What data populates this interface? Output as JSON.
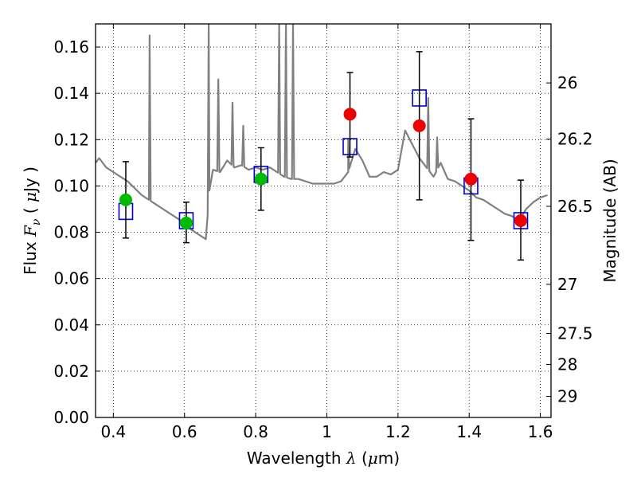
{
  "chart_data": {
    "type": "scatter",
    "xlabel": "Wavelength  λ (μm)",
    "ylabel": "Flux  F_ν  ( μJy )",
    "y2label": "Magnitude (AB)",
    "xlim": [
      0.35,
      1.63
    ],
    "ylim": [
      0.0,
      0.17
    ],
    "x_ticks": [
      0.4,
      0.6,
      0.8,
      1.0,
      1.2,
      1.4,
      1.6
    ],
    "x_tick_labels": [
      "0.4",
      "0.6",
      "0.8",
      "1",
      "1.2",
      "1.4",
      "1.6"
    ],
    "y_ticks": [
      0.0,
      0.02,
      0.04,
      0.06,
      0.08,
      0.1,
      0.12,
      0.14,
      0.16
    ],
    "y_tick_labels": [
      "0.00",
      "0.02",
      "0.04",
      "0.06",
      "0.08",
      "0.10",
      "0.12",
      "0.14",
      "0.16"
    ],
    "y2_ticks": [
      {
        "label": "26",
        "flux": 0.1445
      },
      {
        "label": "26.2",
        "flux": 0.1202
      },
      {
        "label": "26.5",
        "flux": 0.0912
      },
      {
        "label": "27",
        "flux": 0.0575
      },
      {
        "label": "27.5",
        "flux": 0.0363
      },
      {
        "label": "28",
        "flux": 0.0229
      },
      {
        "label": "29",
        "flux": 0.0091
      }
    ],
    "grid": true,
    "series": [
      {
        "style": "model-spectrum",
        "color": "#808080",
        "x": [
          0.35,
          0.36,
          0.38,
          0.4,
          0.42,
          0.44,
          0.46,
          0.48,
          0.5,
          0.52,
          0.54,
          0.56,
          0.58,
          0.6,
          0.62,
          0.64,
          0.66,
          0.67,
          0.68,
          0.7,
          0.72,
          0.74,
          0.76,
          0.78,
          0.8,
          0.82,
          0.84,
          0.86,
          0.88,
          0.9,
          0.92,
          0.94,
          0.96,
          0.98,
          1.0,
          1.02,
          1.04,
          1.06,
          1.08,
          1.1,
          1.12,
          1.14,
          1.16,
          1.18,
          1.2,
          1.22,
          1.24,
          1.26,
          1.28,
          1.3,
          1.32,
          1.34,
          1.36,
          1.38,
          1.4,
          1.42,
          1.44,
          1.46,
          1.48,
          1.5,
          1.52,
          1.54,
          1.56,
          1.58,
          1.6,
          1.62
        ],
        "y": [
          0.11,
          0.112,
          0.108,
          0.106,
          0.104,
          0.102,
          0.099,
          0.096,
          0.094,
          0.092,
          0.09,
          0.088,
          0.086,
          0.084,
          0.081,
          0.079,
          0.077,
          0.098,
          0.107,
          0.106,
          0.111,
          0.108,
          0.109,
          0.107,
          0.108,
          0.107,
          0.108,
          0.106,
          0.104,
          0.103,
          0.103,
          0.102,
          0.101,
          0.101,
          0.101,
          0.101,
          0.102,
          0.106,
          0.116,
          0.111,
          0.104,
          0.104,
          0.106,
          0.105,
          0.107,
          0.124,
          0.118,
          0.112,
          0.108,
          0.104,
          0.11,
          0.103,
          0.102,
          0.1,
          0.098,
          0.095,
          0.094,
          0.092,
          0.09,
          0.088,
          0.087,
          0.085,
          0.09,
          0.093,
          0.095,
          0.096
        ],
        "spikes": [
          {
            "x": 0.502,
            "y": 0.165
          },
          {
            "x": 0.668,
            "y": 0.17
          },
          {
            "x": 0.695,
            "y": 0.146
          },
          {
            "x": 0.735,
            "y": 0.136
          },
          {
            "x": 0.765,
            "y": 0.126
          },
          {
            "x": 0.866,
            "y": 0.17
          },
          {
            "x": 0.885,
            "y": 0.17
          },
          {
            "x": 0.905,
            "y": 0.17
          },
          {
            "x": 1.06,
            "y": 0.12
          },
          {
            "x": 1.285,
            "y": 0.138
          },
          {
            "x": 1.31,
            "y": 0.121
          }
        ]
      },
      {
        "style": "open-square",
        "color": "#0000cc",
        "x": [
          0.435,
          0.605,
          0.815,
          1.065,
          1.26,
          1.405,
          1.545
        ],
        "y": [
          0.089,
          0.085,
          0.105,
          0.117,
          0.138,
          0.1,
          0.085
        ]
      },
      {
        "style": "errorbar-filled-circle",
        "color_green": "#00bb00",
        "color_red": "#ee0000",
        "x": [
          0.435,
          0.605,
          0.815,
          1.065,
          1.26,
          1.405,
          1.545
        ],
        "y": [
          0.094,
          0.084,
          0.103,
          0.131,
          0.126,
          0.103,
          0.085
        ],
        "yerr_low": [
          0.0775,
          0.0755,
          0.0895,
          0.1125,
          0.094,
          0.0765,
          0.068
        ],
        "yerr_high": [
          0.1105,
          0.093,
          0.1165,
          0.149,
          0.158,
          0.129,
          0.1025
        ],
        "colors": [
          "green",
          "green",
          "green",
          "red",
          "red",
          "red",
          "red"
        ]
      }
    ]
  }
}
